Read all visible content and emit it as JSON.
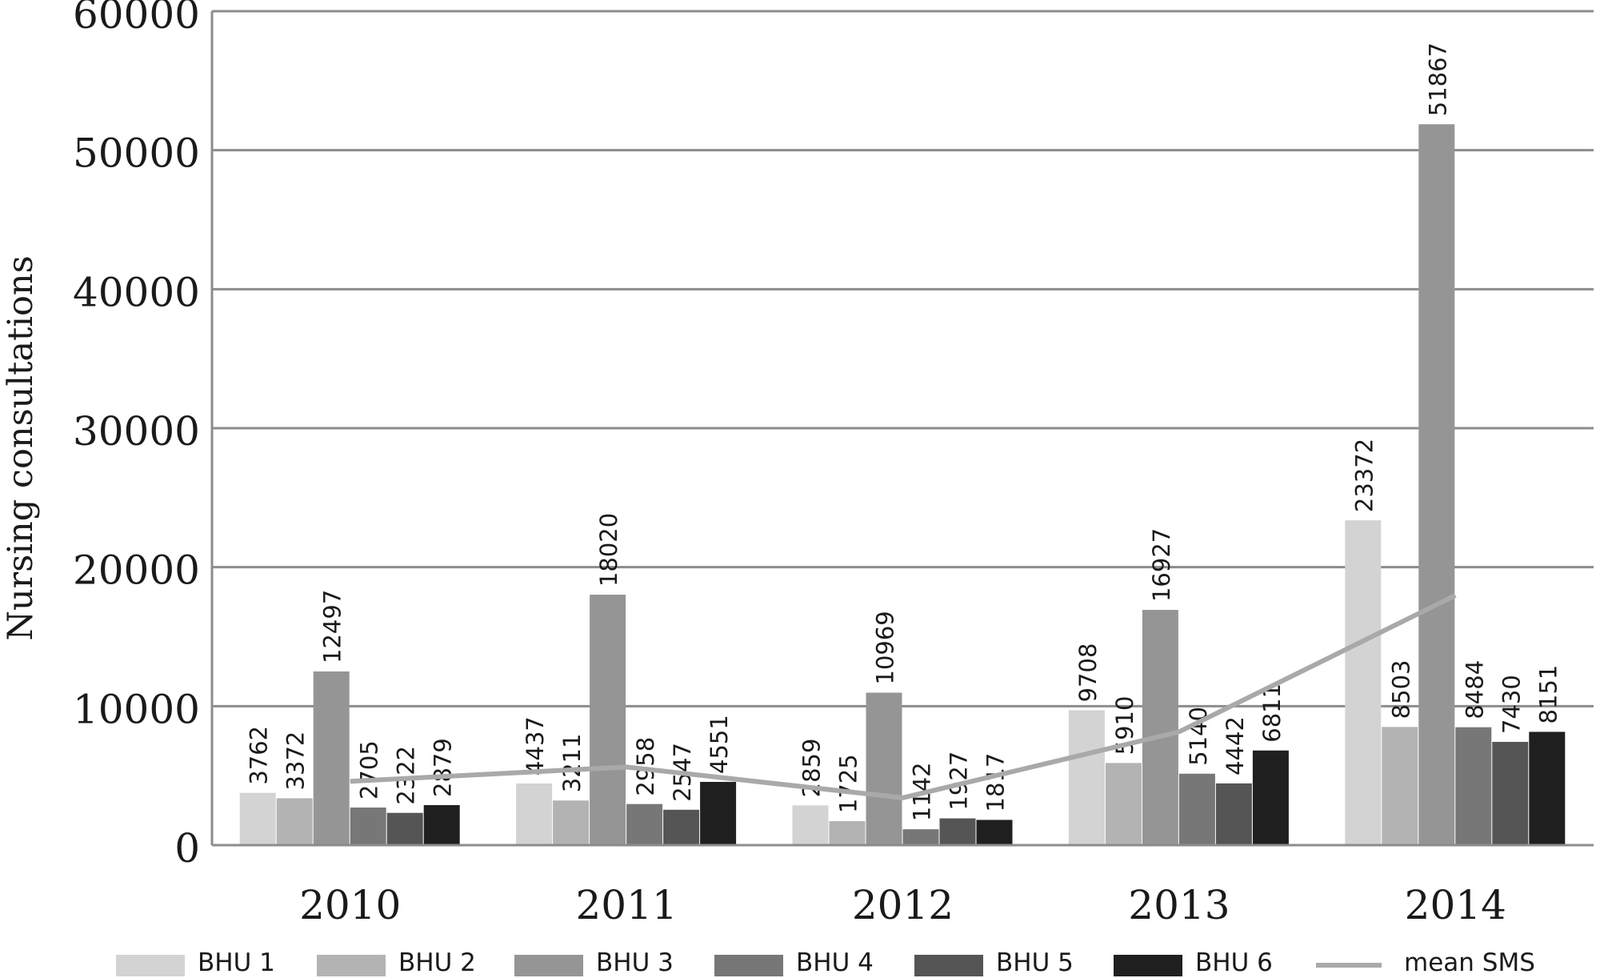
{
  "chart_data": {
    "type": "bar",
    "title": "",
    "xlabel": "",
    "ylabel": "Nursing consultations",
    "ylim": [
      0,
      60000
    ],
    "yticks": [
      "0",
      "10000",
      "20000",
      "30000",
      "40000",
      "50000",
      "60000"
    ],
    "grid": "horizontal",
    "legend_position": "bottom",
    "categories": [
      "2010",
      "2011",
      "2012",
      "2013",
      "2014"
    ],
    "series": [
      {
        "name": "BHU 1",
        "color": "#d3d3d3",
        "values": [
          3762,
          4437,
          2859,
          9708,
          23372
        ],
        "labels": [
          "3762",
          "4437",
          "2859",
          "9708",
          "23372"
        ]
      },
      {
        "name": "BHU 2",
        "color": "#b3b3b3",
        "values": [
          3372,
          3211,
          1725,
          5910,
          8503
        ],
        "labels": [
          "3372",
          "3211",
          "1725",
          "5910",
          "8503"
        ]
      },
      {
        "name": "BHU 3",
        "color": "#959595",
        "values": [
          12497,
          18020,
          10969,
          16927,
          51867
        ],
        "labels": [
          "12497",
          "18020",
          "10969",
          "16927",
          "51867"
        ]
      },
      {
        "name": "BHU 4",
        "color": "#777777",
        "values": [
          2705,
          2958,
          1142,
          5140,
          8484
        ],
        "labels": [
          "2705",
          "2958",
          "1142",
          "5140",
          "8484"
        ]
      },
      {
        "name": "BHU 5",
        "color": "#555555",
        "values": [
          2322,
          2547,
          1927,
          4442,
          7430
        ],
        "labels": [
          "2322",
          "2547",
          "1927",
          "4442",
          "7430"
        ]
      },
      {
        "name": "BHU 6",
        "color": "#1f1f1f",
        "values": [
          2879,
          4551,
          1817,
          6811,
          8151
        ],
        "labels": [
          "2879",
          "4551",
          "1817",
          "6811",
          "8151"
        ]
      }
    ],
    "line_series": {
      "name": "mean SMS",
      "color": "#a9a9a9",
      "values": [
        4590,
        5621,
        3407,
        8156,
        17968
      ]
    }
  }
}
